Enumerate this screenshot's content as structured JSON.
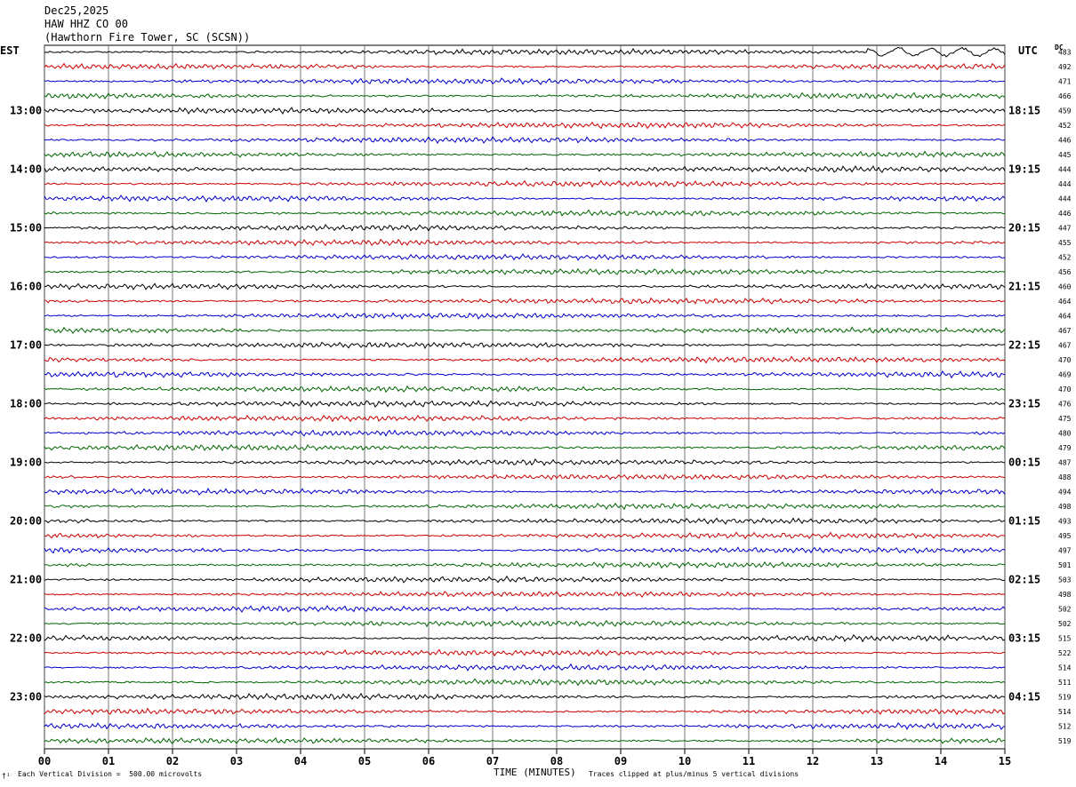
{
  "header": {
    "date": "Dec25,2025",
    "station": "HAW HHZ CO 00",
    "location": "(Hawthorn Fire Tower, SC (SCSN))"
  },
  "labels": {
    "est": "EST",
    "utc": "UTC",
    "dc": "DC"
  },
  "footer": {
    "scale": "Each Vertical Division =  500.00 microvolts",
    "xlabel": "TIME (MINUTES)",
    "clip": "Traces clipped at plus/minus 5 vertical divisions",
    "corner": "†¹"
  },
  "chart_data": {
    "type": "line",
    "title": "",
    "xlabel": "TIME (MINUTES)",
    "xlim": [
      0,
      15
    ],
    "x_ticks": [
      "00",
      "01",
      "02",
      "03",
      "04",
      "05",
      "06",
      "07",
      "08",
      "09",
      "10",
      "11",
      "12",
      "13",
      "14",
      "15"
    ],
    "trace_colors": [
      "#000000",
      "#cc0000",
      "#0000cc",
      "#006600"
    ],
    "left_time_labels": [
      "13:00",
      "14:00",
      "15:00",
      "16:00",
      "17:00",
      "18:00",
      "19:00",
      "20:00",
      "21:00",
      "22:00",
      "23:00"
    ],
    "right_time_labels": [
      "18:15",
      "19:15",
      "20:15",
      "21:15",
      "22:15",
      "23:15",
      "00:15",
      "01:15",
      "02:15",
      "03:15",
      "04:15"
    ],
    "dc_offsets": [
      483,
      492,
      471,
      466,
      459,
      452,
      446,
      445,
      444,
      444,
      444,
      446,
      447,
      455,
      452,
      456,
      460,
      464,
      464,
      467,
      467,
      470,
      469,
      470,
      476,
      475,
      480,
      479,
      487,
      488,
      494,
      498,
      493,
      495,
      497,
      501,
      503,
      498,
      502,
      502,
      515,
      522,
      514,
      511,
      519,
      514,
      512,
      519
    ]
  }
}
